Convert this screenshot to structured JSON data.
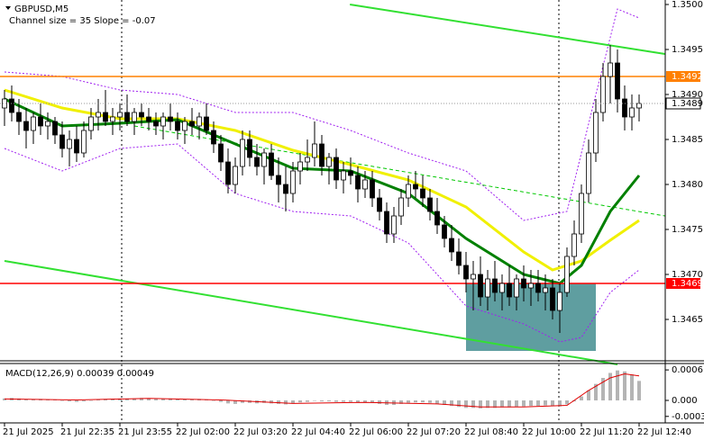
{
  "symbol": "GBPUSD,M5",
  "indicator_label": "Channel size = 35 Slope = -0.07",
  "chart_data": [
    {
      "type": "candlestick",
      "ohlc": [
        [
          1.34885,
          1.34905,
          1.34865,
          1.34895
        ],
        [
          1.34895,
          1.3491,
          1.3487,
          1.3488
        ],
        [
          1.3488,
          1.34895,
          1.34855,
          1.3487
        ],
        [
          1.3487,
          1.34885,
          1.3484,
          1.3486
        ],
        [
          1.3486,
          1.3488,
          1.34845,
          1.34875
        ],
        [
          1.34875,
          1.3489,
          1.34855,
          1.34865
        ],
        [
          1.34865,
          1.3488,
          1.3485,
          1.3487
        ],
        [
          1.3487,
          1.34875,
          1.34845,
          1.34855
        ],
        [
          1.34855,
          1.3487,
          1.3483,
          1.3484
        ],
        [
          1.3484,
          1.3486,
          1.3482,
          1.3485
        ],
        [
          1.3485,
          1.34865,
          1.34825,
          1.34835
        ],
        [
          1.34835,
          1.3487,
          1.3483,
          1.3486
        ],
        [
          1.3486,
          1.34885,
          1.3485,
          1.34875
        ],
        [
          1.34875,
          1.34895,
          1.3486,
          1.3488
        ],
        [
          1.3488,
          1.34905,
          1.34865,
          1.3487
        ],
        [
          1.3487,
          1.34885,
          1.34855,
          1.34875
        ],
        [
          1.34875,
          1.3489,
          1.3486,
          1.3488
        ],
        [
          1.3488,
          1.349,
          1.34865,
          1.3487
        ],
        [
          1.3487,
          1.34885,
          1.34855,
          1.3488
        ],
        [
          1.3488,
          1.3489,
          1.34865,
          1.34875
        ],
        [
          1.34875,
          1.34885,
          1.3486,
          1.3487
        ],
        [
          1.3487,
          1.3488,
          1.34855,
          1.34865
        ],
        [
          1.34865,
          1.3488,
          1.3485,
          1.34875
        ],
        [
          1.34875,
          1.3489,
          1.3486,
          1.3487
        ],
        [
          1.3487,
          1.3488,
          1.3485,
          1.3486
        ],
        [
          1.3486,
          1.34875,
          1.34845,
          1.3487
        ],
        [
          1.3487,
          1.34885,
          1.34855,
          1.34865
        ],
        [
          1.34865,
          1.3488,
          1.3485,
          1.34875
        ],
        [
          1.34875,
          1.3489,
          1.34855,
          1.3486
        ],
        [
          1.3486,
          1.3487,
          1.34835,
          1.34845
        ],
        [
          1.34845,
          1.34855,
          1.34815,
          1.34825
        ],
        [
          1.34825,
          1.3484,
          1.3479,
          1.348
        ],
        [
          1.348,
          1.3483,
          1.3479,
          1.3482
        ],
        [
          1.3482,
          1.3486,
          1.3481,
          1.3485
        ],
        [
          1.3485,
          1.3486,
          1.3482,
          1.3483
        ],
        [
          1.3483,
          1.34845,
          1.3481,
          1.3482
        ],
        [
          1.3482,
          1.3484,
          1.348,
          1.34835
        ],
        [
          1.34835,
          1.34845,
          1.34805,
          1.3481
        ],
        [
          1.3481,
          1.3483,
          1.3478,
          1.348
        ],
        [
          1.348,
          1.3482,
          1.3477,
          1.3479
        ],
        [
          1.3479,
          1.34825,
          1.3478,
          1.34815
        ],
        [
          1.34815,
          1.34835,
          1.348,
          1.34825
        ],
        [
          1.34825,
          1.3485,
          1.34815,
          1.3483
        ],
        [
          1.3483,
          1.3487,
          1.3482,
          1.34845
        ],
        [
          1.34845,
          1.34855,
          1.3481,
          1.3482
        ],
        [
          1.3482,
          1.34835,
          1.348,
          1.3483
        ],
        [
          1.3483,
          1.3484,
          1.34795,
          1.34805
        ],
        [
          1.34805,
          1.34825,
          1.3479,
          1.34815
        ],
        [
          1.34815,
          1.3483,
          1.348,
          1.3481
        ],
        [
          1.3481,
          1.3482,
          1.3478,
          1.34795
        ],
        [
          1.34795,
          1.34815,
          1.34785,
          1.34805
        ],
        [
          1.34805,
          1.34815,
          1.34775,
          1.34785
        ],
        [
          1.34785,
          1.34795,
          1.3476,
          1.3477
        ],
        [
          1.3477,
          1.3478,
          1.34735,
          1.34745
        ],
        [
          1.34745,
          1.34775,
          1.34735,
          1.34765
        ],
        [
          1.34765,
          1.34795,
          1.34755,
          1.34785
        ],
        [
          1.34785,
          1.3481,
          1.34775,
          1.348
        ],
        [
          1.348,
          1.34815,
          1.34785,
          1.34795
        ],
        [
          1.34795,
          1.3481,
          1.34775,
          1.34785
        ],
        [
          1.34785,
          1.34795,
          1.3476,
          1.3477
        ],
        [
          1.3477,
          1.34785,
          1.34745,
          1.34755
        ],
        [
          1.34755,
          1.34765,
          1.3473,
          1.3474
        ],
        [
          1.3474,
          1.34755,
          1.34715,
          1.34725
        ],
        [
          1.34725,
          1.3474,
          1.347,
          1.3471
        ],
        [
          1.3471,
          1.34725,
          1.3468,
          1.34695
        ],
        [
          1.34695,
          1.34715,
          1.3466,
          1.347
        ],
        [
          1.347,
          1.3472,
          1.34665,
          1.34675
        ],
        [
          1.34675,
          1.34705,
          1.3466,
          1.34695
        ],
        [
          1.34695,
          1.34715,
          1.3467,
          1.3468
        ],
        [
          1.3468,
          1.347,
          1.3466,
          1.3469
        ],
        [
          1.3469,
          1.3471,
          1.34665,
          1.34675
        ],
        [
          1.34675,
          1.347,
          1.3466,
          1.34695
        ],
        [
          1.34695,
          1.3471,
          1.3467,
          1.34685
        ],
        [
          1.34685,
          1.34705,
          1.34665,
          1.3469
        ],
        [
          1.3469,
          1.34705,
          1.3467,
          1.3468
        ],
        [
          1.3468,
          1.347,
          1.3466,
          1.34685
        ],
        [
          1.34685,
          1.34695,
          1.3465,
          1.3466
        ],
        [
          1.3466,
          1.3469,
          1.34635,
          1.3468
        ],
        [
          1.3468,
          1.3473,
          1.34675,
          1.3472
        ],
        [
          1.3472,
          1.3476,
          1.3471,
          1.34745
        ],
        [
          1.34745,
          1.348,
          1.34735,
          1.3479
        ],
        [
          1.3479,
          1.3485,
          1.3478,
          1.34835
        ],
        [
          1.34835,
          1.34895,
          1.34825,
          1.3488
        ],
        [
          1.3488,
          1.34935,
          1.3487,
          1.3492
        ],
        [
          1.3492,
          1.34955,
          1.3489,
          1.34935
        ],
        [
          1.34935,
          1.3495,
          1.3488,
          1.34895
        ],
        [
          1.34895,
          1.3491,
          1.3486,
          1.34875
        ],
        [
          1.34875,
          1.349,
          1.3486,
          1.34885
        ],
        [
          1.34885,
          1.349,
          1.3487,
          1.3489
        ]
      ],
      "xticks": [
        {
          "value": 0,
          "label": "21 Jul 2025"
        },
        {
          "value": 8,
          "label": "21 Jul 22:35"
        },
        {
          "value": 16,
          "label": "21 Jul 23:55"
        },
        {
          "value": 24,
          "label": "22 Jul 02:00"
        },
        {
          "value": 32,
          "label": "22 Jul 03:20"
        },
        {
          "value": 40,
          "label": "22 Jul 04:40"
        },
        {
          "value": 48,
          "label": "22 Jul 06:00"
        },
        {
          "value": 56,
          "label": "22 Jul 07:20"
        },
        {
          "value": 64,
          "label": "22 Jul 08:40"
        },
        {
          "value": 72,
          "label": "22 Jul 10:00"
        },
        {
          "value": 80,
          "label": "22 Jul 11:20"
        },
        {
          "value": 88,
          "label": "22 Jul 12:40"
        }
      ],
      "ylim": [
        1.34605,
        1.35005
      ],
      "yticks": [
        {
          "value": 1.35,
          "label": "1.3500"
        },
        1.3495,
        {
          "value": 1.349,
          "label": "1.3490"
        },
        1.3485,
        {
          "value": 1.348,
          "label": "1.3480"
        },
        1.3475,
        {
          "value": 1.347,
          "label": "1.3470"
        },
        1.3465
      ],
      "overlays": [
        {
          "color": "#a020f0",
          "style": "dotted",
          "x": [
            0,
            8,
            16,
            24,
            32,
            40,
            48,
            56,
            64,
            72,
            78,
            82,
            85,
            88
          ],
          "values": [
            1.34925,
            1.3492,
            1.34905,
            1.349,
            1.3488,
            1.3488,
            1.3486,
            1.34835,
            1.34815,
            1.3476,
            1.3477,
            1.349,
            1.34995,
            1.34985
          ]
        },
        {
          "color": "#a020f0",
          "style": "dotted",
          "x": [
            0,
            8,
            16,
            24,
            32,
            40,
            48,
            56,
            64,
            72,
            77,
            80,
            84,
            88
          ],
          "values": [
            1.3484,
            1.34815,
            1.3484,
            1.34845,
            1.3479,
            1.3477,
            1.34765,
            1.34735,
            1.34665,
            1.34645,
            1.34625,
            1.3463,
            1.3468,
            1.34705
          ]
        },
        {
          "color": "#00c800",
          "style": "dashed",
          "x": [
            18,
            91.6
          ],
          "values": [
            1.34865,
            1.34765
          ]
        },
        {
          "color": "#f0f000",
          "style": "thick",
          "x": [
            0,
            8,
            16,
            24,
            32,
            40,
            48,
            56,
            64,
            72,
            76,
            80,
            84,
            88
          ],
          "values": [
            1.34905,
            1.34885,
            1.34873,
            1.34873,
            1.3486,
            1.34838,
            1.34822,
            1.34805,
            1.34775,
            1.34725,
            1.34705,
            1.34715,
            1.34738,
            1.3476
          ]
        },
        {
          "color": "#008000",
          "style": "thick",
          "x": [
            0,
            8,
            16,
            24,
            32,
            40,
            48,
            56,
            64,
            72,
            77,
            80,
            84,
            88
          ],
          "values": [
            1.34895,
            1.34865,
            1.34868,
            1.34872,
            1.34845,
            1.34818,
            1.34815,
            1.3479,
            1.3474,
            1.347,
            1.3469,
            1.3471,
            1.3477,
            1.3481
          ]
        },
        {
          "color": "#32e032",
          "style": "solid",
          "x": [
            47.9,
            91.6
          ],
          "values": [
            1.35,
            1.34945
          ]
        },
        {
          "color": "#32e032",
          "style": "solid",
          "x": [
            0,
            85
          ],
          "values": [
            1.34715,
            1.346
          ]
        }
      ],
      "zone": {
        "x": [
          64,
          82
        ],
        "y": [
          1.34615,
          1.3469
        ],
        "color": "#5f9ea0"
      },
      "levels": [
        {
          "value": 1.3492,
          "label": "1.3492",
          "color": "#ff8000"
        },
        {
          "value": 1.3469,
          "label": "1.3469",
          "color": "#ff0000"
        }
      ],
      "last_price": {
        "value": 1.3489,
        "label": "1.3489"
      }
    },
    {
      "type": "macd",
      "title": "MACD(12,26,9) 0.00039 0.00049",
      "histogram": [
        4e-05,
        5e-05,
        4e-05,
        2e-05,
        2e-05,
        3e-05,
        2e-05,
        1e-05,
        -1e-05,
        -2e-05,
        -3e-05,
        -2e-05,
        0,
        2e-05,
        3e-05,
        3e-05,
        4e-05,
        4e-05,
        4e-05,
        5e-05,
        4e-05,
        3e-05,
        3e-05,
        4e-05,
        3e-05,
        2e-05,
        2e-05,
        3e-05,
        2e-05,
        0,
        -3e-05,
        -6e-05,
        -7e-05,
        -5e-05,
        -5e-05,
        -6e-05,
        -5e-05,
        -6e-05,
        -7e-05,
        -8e-05,
        -6e-05,
        -4e-05,
        -3e-05,
        -1e-05,
        -2e-05,
        -2e-05,
        -3e-05,
        -3e-05,
        -3e-05,
        -4e-05,
        -4e-05,
        -5e-05,
        -7e-05,
        -9e-05,
        -9e-05,
        -7e-05,
        -5e-05,
        -4e-05,
        -4e-05,
        -5e-05,
        -7e-05,
        -9e-05,
        -0.00011,
        -0.00013,
        -0.00015,
        -0.00015,
        -0.00016,
        -0.00015,
        -0.00015,
        -0.00014,
        -0.00014,
        -0.00013,
        -0.00012,
        -0.00011,
        -0.00011,
        -0.0001,
        -0.00011,
        -0.00012,
        -8e-05,
        -2e-05,
        8e-05,
        0.0002,
        0.00033,
        0.00045,
        0.00055,
        0.0006,
        0.00058,
        0.00052,
        0.00039
      ],
      "histogram_color": "#b4b4b4",
      "signal": {
        "color": "#e00000",
        "x": [
          0,
          10,
          20,
          30,
          40,
          50,
          60,
          66,
          72,
          78,
          81,
          84,
          86,
          88
        ],
        "values": [
          3e-05,
          1e-05,
          4e-05,
          1e-05,
          -6e-05,
          -4e-05,
          -7e-05,
          -0.00013,
          -0.00013,
          -0.0001,
          0.0002,
          0.00045,
          0.00053,
          0.00049
        ]
      },
      "ylim": [
        -0.00045,
        0.00072
      ],
      "yticks": [
        0.00061,
        {
          "value": 0,
          "label": "0.000"
        },
        -0.00032
      ]
    }
  ]
}
